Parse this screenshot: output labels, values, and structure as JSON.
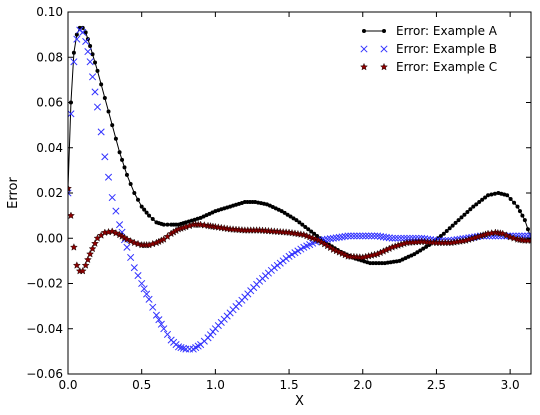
{
  "chart_data": {
    "type": "line",
    "xlabel": "X",
    "ylabel": "Error",
    "xlim": [
      0,
      3.1416
    ],
    "ylim": [
      -0.06,
      0.1
    ],
    "xticks": [
      0.0,
      0.5,
      1.0,
      1.5,
      2.0,
      2.5,
      3.0
    ],
    "xtick_labels": [
      "0.0",
      "0.5",
      "1.0",
      "1.5",
      "2.0",
      "2.5",
      "3.0"
    ],
    "yticks": [
      -0.06,
      -0.04,
      -0.02,
      0.0,
      0.02,
      0.04,
      0.06,
      0.08,
      0.1
    ],
    "ytick_labels": [
      "−0.06",
      "−0.04",
      "−0.02",
      "0.00",
      "0.02",
      "0.04",
      "0.06",
      "0.08",
      "0.10"
    ],
    "grid": false,
    "legend_position": "top-right",
    "series": [
      {
        "name": "Error: Example A",
        "color": "#000000",
        "marker": "dot",
        "line": true,
        "points": [
          [
            0.0,
            0.022
          ],
          [
            0.02,
            0.06
          ],
          [
            0.04,
            0.082
          ],
          [
            0.06,
            0.09
          ],
          [
            0.08,
            0.093
          ],
          [
            0.1,
            0.093
          ],
          [
            0.12,
            0.091
          ],
          [
            0.15,
            0.085
          ],
          [
            0.2,
            0.074
          ],
          [
            0.25,
            0.062
          ],
          [
            0.3,
            0.05
          ],
          [
            0.35,
            0.038
          ],
          [
            0.4,
            0.028
          ],
          [
            0.45,
            0.02
          ],
          [
            0.5,
            0.014
          ],
          [
            0.55,
            0.01
          ],
          [
            0.6,
            0.007
          ],
          [
            0.65,
            0.006
          ],
          [
            0.7,
            0.006
          ],
          [
            0.75,
            0.006
          ],
          [
            0.8,
            0.007
          ],
          [
            0.9,
            0.009
          ],
          [
            1.0,
            0.012
          ],
          [
            1.1,
            0.014
          ],
          [
            1.2,
            0.016
          ],
          [
            1.27,
            0.016
          ],
          [
            1.35,
            0.015
          ],
          [
            1.45,
            0.012
          ],
          [
            1.55,
            0.008
          ],
          [
            1.65,
            0.003
          ],
          [
            1.75,
            -0.002
          ],
          [
            1.85,
            -0.006
          ],
          [
            1.95,
            -0.009
          ],
          [
            2.05,
            -0.011
          ],
          [
            2.15,
            -0.011
          ],
          [
            2.25,
            -0.01
          ],
          [
            2.35,
            -0.007
          ],
          [
            2.45,
            -0.003
          ],
          [
            2.55,
            0.002
          ],
          [
            2.65,
            0.008
          ],
          [
            2.75,
            0.014
          ],
          [
            2.85,
            0.019
          ],
          [
            2.92,
            0.02
          ],
          [
            2.98,
            0.019
          ],
          [
            3.05,
            0.014
          ],
          [
            3.1,
            0.008
          ],
          [
            3.1416,
            0.0
          ]
        ]
      },
      {
        "name": "Error: Example B",
        "color": "#3333ff",
        "marker": "x",
        "line": false,
        "points": [
          [
            0.0,
            0.02
          ],
          [
            0.02,
            0.055
          ],
          [
            0.04,
            0.078
          ],
          [
            0.06,
            0.088
          ],
          [
            0.08,
            0.092
          ],
          [
            0.1,
            0.091
          ],
          [
            0.12,
            0.087
          ],
          [
            0.15,
            0.078
          ],
          [
            0.2,
            0.058
          ],
          [
            0.25,
            0.036
          ],
          [
            0.3,
            0.018
          ],
          [
            0.35,
            0.006
          ],
          [
            0.4,
            -0.004
          ],
          [
            0.45,
            -0.013
          ],
          [
            0.5,
            -0.02
          ],
          [
            0.55,
            -0.027
          ],
          [
            0.6,
            -0.034
          ],
          [
            0.65,
            -0.04
          ],
          [
            0.7,
            -0.045
          ],
          [
            0.75,
            -0.048
          ],
          [
            0.8,
            -0.049
          ],
          [
            0.85,
            -0.049
          ],
          [
            0.9,
            -0.047
          ],
          [
            0.95,
            -0.044
          ],
          [
            1.0,
            -0.04
          ],
          [
            1.1,
            -0.033
          ],
          [
            1.2,
            -0.026
          ],
          [
            1.3,
            -0.019
          ],
          [
            1.4,
            -0.013
          ],
          [
            1.5,
            -0.008
          ],
          [
            1.6,
            -0.004
          ],
          [
            1.7,
            -0.001
          ],
          [
            1.8,
            0.0
          ],
          [
            1.9,
            0.001
          ],
          [
            2.0,
            0.001
          ],
          [
            2.1,
            0.001
          ],
          [
            2.2,
            0.0
          ],
          [
            2.3,
            0.0
          ],
          [
            2.4,
            0.0
          ],
          [
            2.5,
            -0.001
          ],
          [
            2.6,
            -0.001
          ],
          [
            2.7,
            0.0
          ],
          [
            2.8,
            0.001
          ],
          [
            2.9,
            0.001
          ],
          [
            3.0,
            0.001
          ],
          [
            3.1,
            0.001
          ],
          [
            3.1416,
            0.001
          ]
        ]
      },
      {
        "name": "Error: Example C",
        "color": "#8b0000",
        "marker": "star",
        "line": false,
        "points": [
          [
            0.0,
            0.022
          ],
          [
            0.02,
            0.01
          ],
          [
            0.04,
            -0.004
          ],
          [
            0.06,
            -0.012
          ],
          [
            0.08,
            -0.0145
          ],
          [
            0.1,
            -0.0145
          ],
          [
            0.12,
            -0.012
          ],
          [
            0.15,
            -0.007
          ],
          [
            0.2,
            0.0
          ],
          [
            0.25,
            0.0025
          ],
          [
            0.3,
            0.003
          ],
          [
            0.35,
            0.0015
          ],
          [
            0.4,
            -0.0005
          ],
          [
            0.45,
            -0.002
          ],
          [
            0.5,
            -0.003
          ],
          [
            0.55,
            -0.003
          ],
          [
            0.6,
            -0.002
          ],
          [
            0.65,
            -0.0005
          ],
          [
            0.7,
            0.002
          ],
          [
            0.75,
            0.004
          ],
          [
            0.8,
            0.005
          ],
          [
            0.85,
            0.006
          ],
          [
            0.9,
            0.006
          ],
          [
            0.95,
            0.0055
          ],
          [
            1.0,
            0.005
          ],
          [
            1.1,
            0.004
          ],
          [
            1.2,
            0.0035
          ],
          [
            1.3,
            0.0035
          ],
          [
            1.4,
            0.003
          ],
          [
            1.5,
            0.0025
          ],
          [
            1.6,
            0.0015
          ],
          [
            1.7,
            -0.001
          ],
          [
            1.8,
            -0.005
          ],
          [
            1.9,
            -0.008
          ],
          [
            2.0,
            -0.0085
          ],
          [
            2.1,
            -0.007
          ],
          [
            2.2,
            -0.004
          ],
          [
            2.3,
            -0.002
          ],
          [
            2.4,
            -0.0015
          ],
          [
            2.5,
            -0.002
          ],
          [
            2.6,
            -0.002
          ],
          [
            2.7,
            -0.001
          ],
          [
            2.8,
            0.001
          ],
          [
            2.85,
            0.002
          ],
          [
            2.9,
            0.0025
          ],
          [
            2.95,
            0.002
          ],
          [
            3.0,
            0.0005
          ],
          [
            3.05,
            -0.0005
          ],
          [
            3.1,
            -0.001
          ],
          [
            3.1416,
            -0.001
          ]
        ]
      }
    ]
  }
}
